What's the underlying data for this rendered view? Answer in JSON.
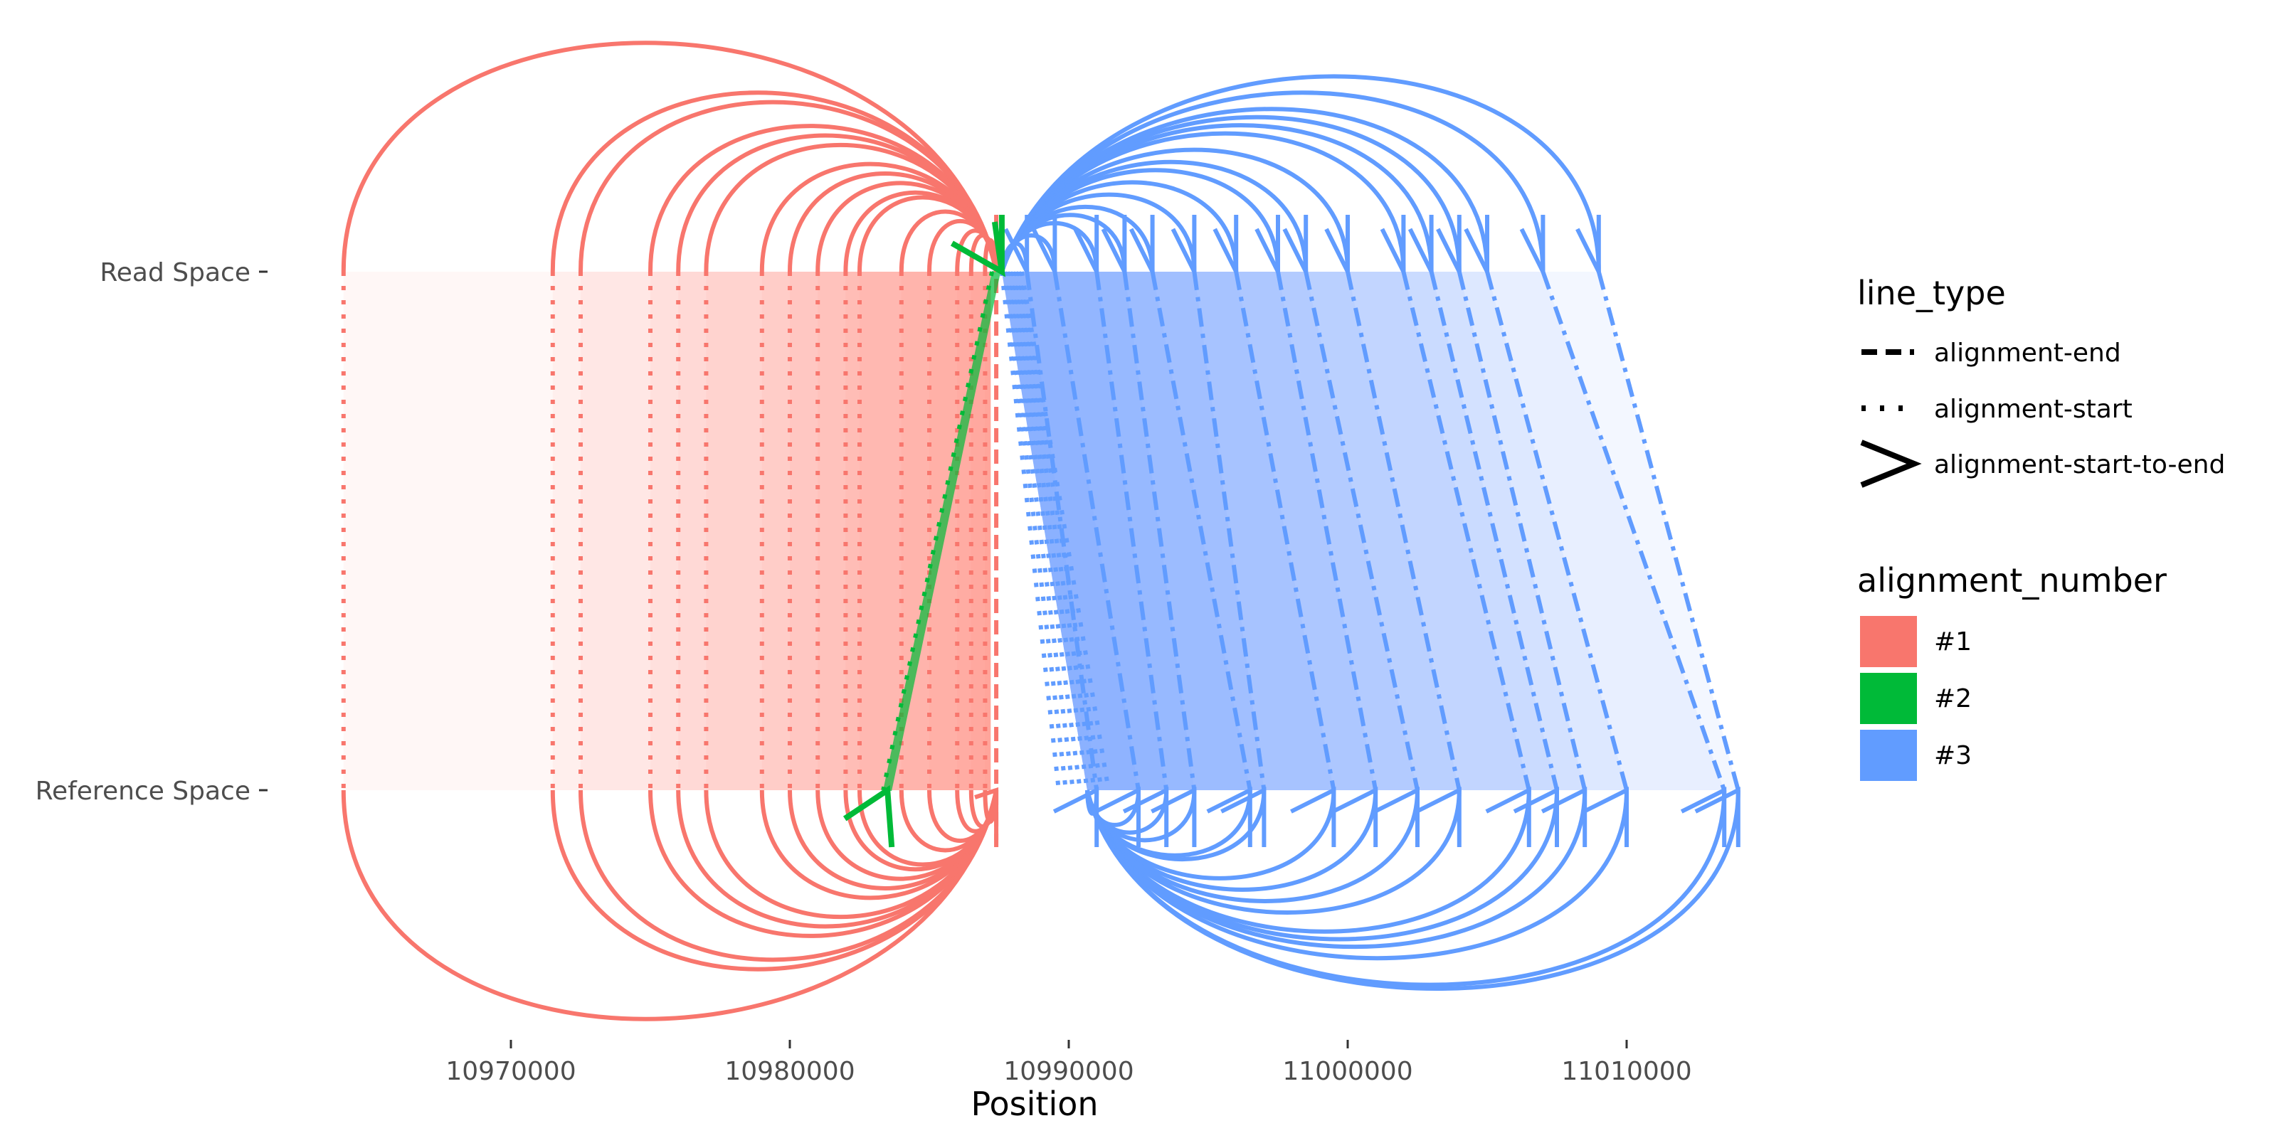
{
  "chart_data": {
    "type": "line",
    "xlabel": "Position",
    "y_categories": [
      "Read Space",
      "Reference Space"
    ],
    "x_ticks": [
      10970000,
      10980000,
      10990000,
      11000000,
      11010000
    ],
    "x_tick_labels": [
      "10970000",
      "10980000",
      "10990000",
      "11000000",
      "11010000"
    ],
    "xlim": [
      10962000,
      11015000
    ],
    "grid": false,
    "legend_position": "right",
    "legend": {
      "line_type": {
        "title": "line_type",
        "entries": [
          "alignment-end",
          "alignment-start",
          "alignment-start-to-end"
        ]
      },
      "alignment_number": {
        "title": "alignment_number",
        "entries": [
          "#1",
          "#2",
          "#3"
        ]
      }
    },
    "colors": {
      "#1": "#F8766D",
      "#2": "#00BA38",
      "#3": "#619CFF"
    },
    "series": [
      {
        "name": "#1",
        "read_span": [
          10964000,
          10987400
        ],
        "reference_span": [
          10964000,
          10987200
        ],
        "alignment_start_positions": [
          10964000,
          10971500,
          10972500,
          10975000,
          10976000,
          10977000,
          10979000,
          10980000,
          10981000,
          10982000,
          10982500,
          10984000,
          10985000,
          10986000,
          10986500,
          10987000
        ],
        "alignment_end_read": 10987400,
        "alignment_end_reference": 10987200
      },
      {
        "name": "#2",
        "alignment_start_read": 10987400,
        "alignment_start_reference": 10983500,
        "alignment_end_read": 10987600,
        "alignment_end_reference": 10983500
      },
      {
        "name": "#3",
        "read_span": [
          10987600,
          11009200
        ],
        "reference_span": [
          10987600,
          11014000
        ],
        "alignment_start_read": 10987600,
        "alignment_end_read": [
          10988500,
          10989500,
          10991000,
          10992000,
          10993000,
          10994500,
          10996000,
          10997500,
          10998500,
          11000000,
          11002000,
          11003000,
          11004000,
          11005000,
          11007000,
          11009000
        ],
        "alignment_end_reference": [
          10991000,
          10992500,
          10993500,
          10994500,
          10996500,
          10997000,
          10999500,
          11001000,
          11002500,
          11004000,
          11006500,
          11007500,
          11008500,
          11010000,
          11013500,
          11014000
        ]
      }
    ]
  }
}
